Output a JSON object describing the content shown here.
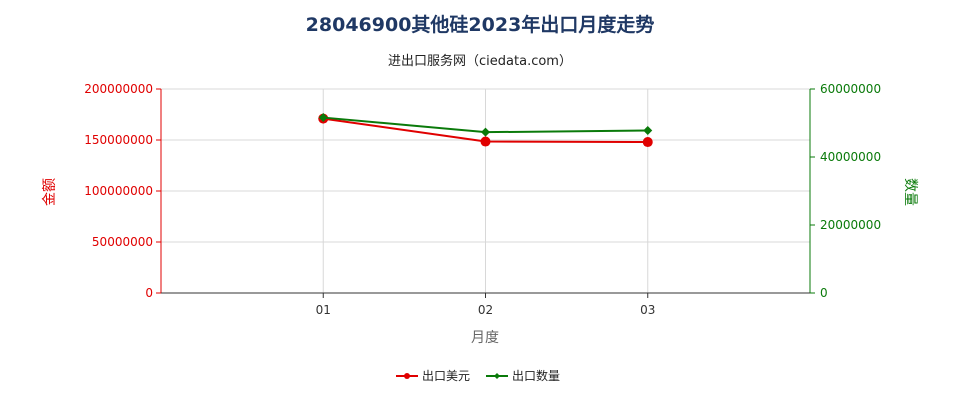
{
  "chart_data": {
    "type": "line",
    "title": "28046900其他硅2023年出口月度走势",
    "subtitle": "进出口服务网（ciedata.com）",
    "xlabel": "月度",
    "ylabel_left": "金额",
    "ylabel_right": "数量",
    "categories": [
      "01",
      "02",
      "03"
    ],
    "y_left": {
      "min": 0,
      "max": 200000000,
      "ticks": [
        "0",
        "50000000",
        "100000000",
        "150000000",
        "200000000"
      ]
    },
    "y_right": {
      "min": 0,
      "max": 60000000,
      "ticks": [
        "0",
        "20000000",
        "40000000",
        "60000000"
      ]
    },
    "series": [
      {
        "name": "出口美元",
        "axis": "left",
        "color": "#e00000",
        "values": [
          171000000,
          148500000,
          148000000
        ]
      },
      {
        "name": "出口数量",
        "axis": "right",
        "color": "#0a7a0a",
        "values": [
          51600000,
          47300000,
          47800000
        ]
      }
    ],
    "grid": true,
    "legend": "bottom-center"
  }
}
